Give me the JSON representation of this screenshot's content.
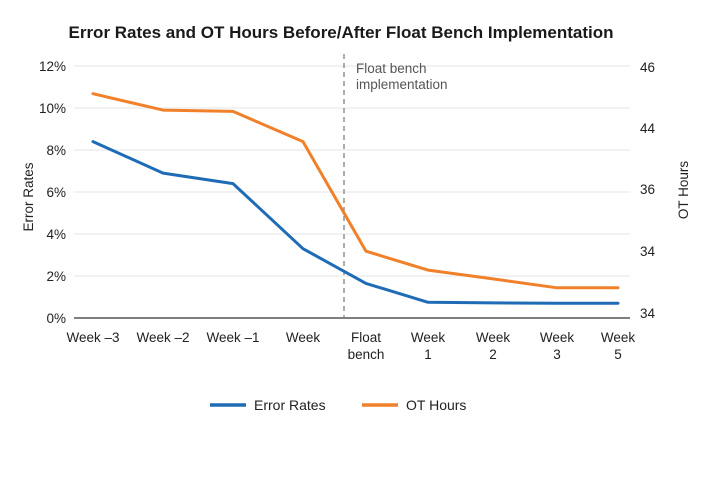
{
  "chart_data": {
    "type": "line",
    "title": "Error Rates and OT Hours Before/After Float Bench Implementation",
    "xlabel": "",
    "ylabel_left": "Error Rates",
    "ylabel_right": "OT Hours",
    "categories": [
      [
        "Week –3"
      ],
      [
        "Week –2"
      ],
      [
        "Week –1"
      ],
      [
        "Week"
      ],
      [
        "Float",
        "bench"
      ],
      [
        "Week",
        "1"
      ],
      [
        "Week",
        "2"
      ],
      [
        "Week",
        "3"
      ],
      [
        "Week",
        "5"
      ]
    ],
    "left_axis": {
      "ticks": [
        "0%",
        "2%",
        "4%",
        "6%",
        "8%",
        "10%",
        "12%"
      ],
      "range": [
        0,
        12
      ]
    },
    "right_axis": {
      "ticks": [
        "34",
        "34",
        "36",
        "44",
        "46"
      ]
    },
    "annotation": [
      "Float bench",
      "implementation"
    ],
    "series": [
      {
        "name": "Error Rates",
        "axis": "left",
        "color": "#1f6bb5",
        "values": [
          8.4,
          6.9,
          6.4,
          3.3,
          1.65,
          0.75,
          0.72,
          0.7,
          0.7
        ]
      },
      {
        "name": "OT Hours",
        "axis": "right",
        "color": "#f0812a",
        "values_pct_of_axis": [
          0.89,
          0.825,
          0.82,
          0.7,
          0.265,
          0.19,
          0.155,
          0.12,
          0.12
        ]
      }
    ],
    "grid": true,
    "legend_position": "bottom"
  }
}
